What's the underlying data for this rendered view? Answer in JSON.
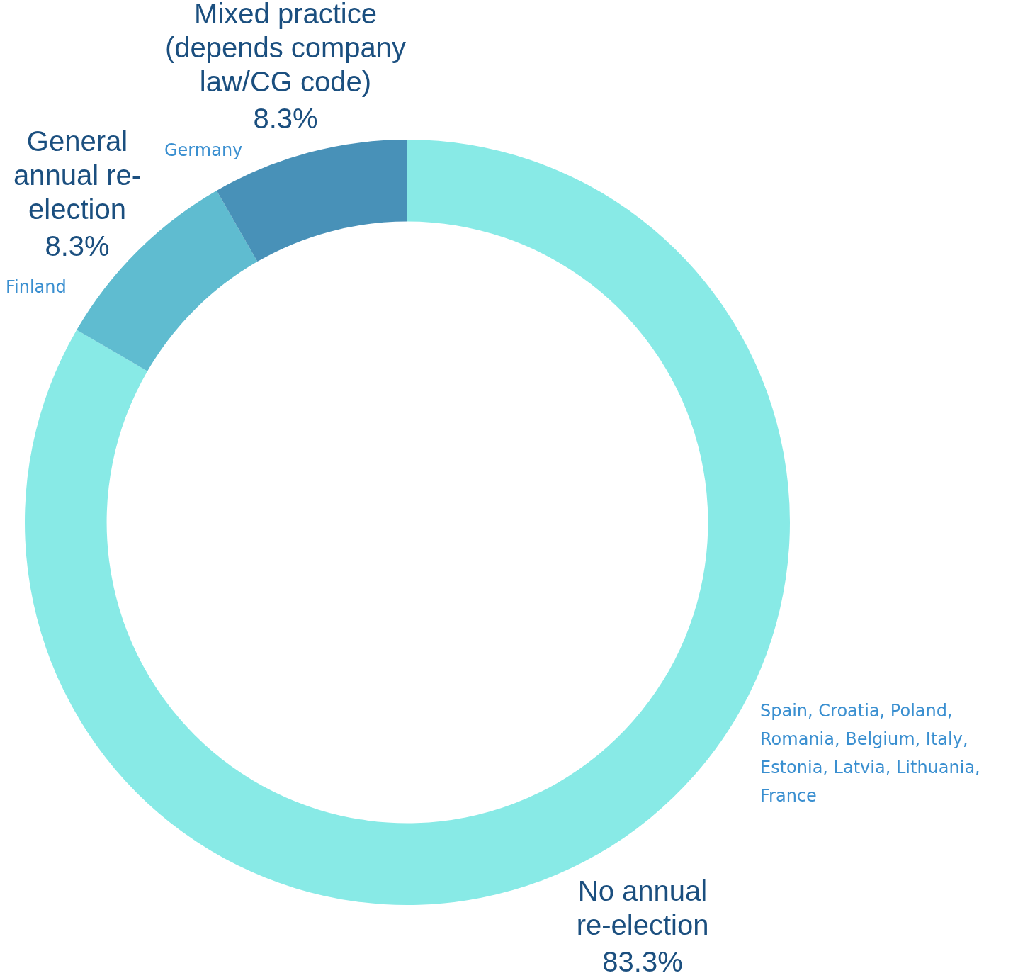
{
  "chart_data": {
    "type": "donut",
    "categories": [
      "No annual re-election",
      "General annual re-election",
      "Mixed practice (depends company law/CG code)"
    ],
    "values": [
      83.3,
      8.3,
      8.3
    ],
    "colors": [
      "#88eae6",
      "#5fbcd0",
      "#4891b8"
    ],
    "value_labels": [
      "83.3%",
      "8.3%",
      "8.3%"
    ],
    "annotations": [
      "Spain, Croatia, Poland, Romania, Belgium, Italy, Estonia, Latvia, Lithuania, France",
      "Finland",
      "Germany"
    ],
    "legend": false
  }
}
